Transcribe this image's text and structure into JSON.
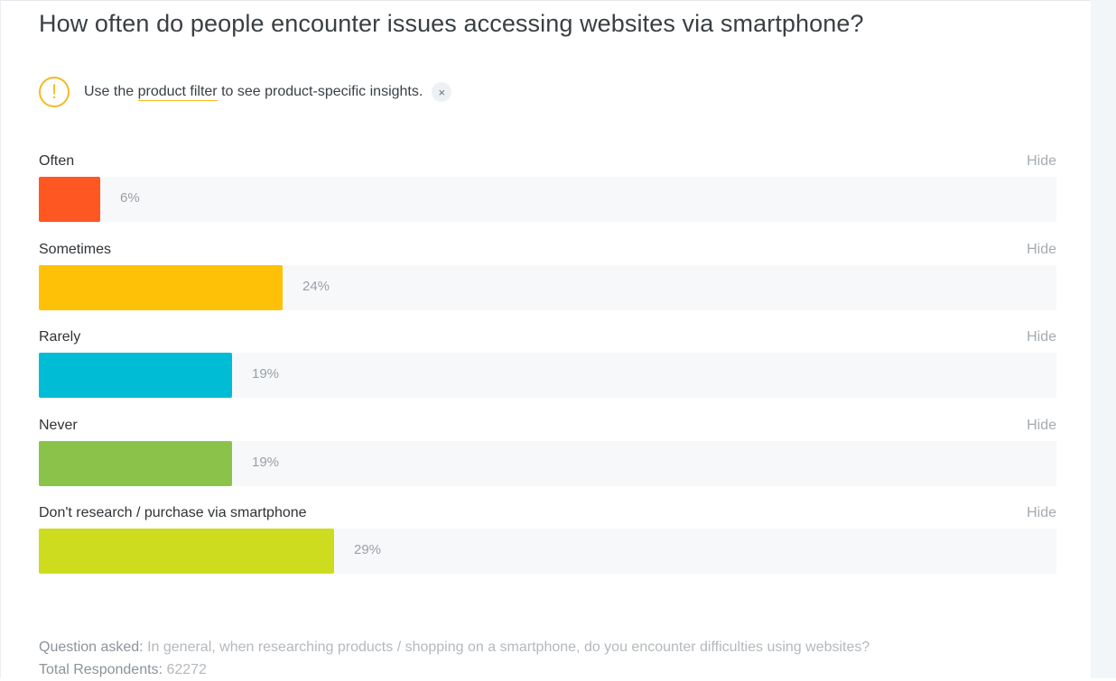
{
  "title": "How often do people encounter issues accessing websites via smartphone?",
  "notice": {
    "icon": "exclamation-icon",
    "prefix": "Use the ",
    "link": "product filter",
    "suffix": " to see product-specific insights.",
    "close": "×"
  },
  "chart_data": {
    "type": "bar",
    "orientation": "horizontal",
    "categories": [
      "Often",
      "Sometimes",
      "Rarely",
      "Never",
      "Don't research / purchase via smartphone"
    ],
    "values": [
      6,
      24,
      19,
      19,
      29
    ],
    "value_labels": [
      "6%",
      "24%",
      "19%",
      "19%",
      "29%"
    ],
    "colors": [
      "#ff5722",
      "#ffc107",
      "#00bcd4",
      "#8bc34a",
      "#cddc1e"
    ],
    "ylim": [
      0,
      100
    ],
    "hide_label": "Hide"
  },
  "footer": {
    "question_label": "Question asked:",
    "question_text": "In general, when researching products / shopping on a smartphone, do you encounter difficulties using websites?",
    "respondents_label": "Total Respondents:",
    "respondents_value": "62272"
  }
}
